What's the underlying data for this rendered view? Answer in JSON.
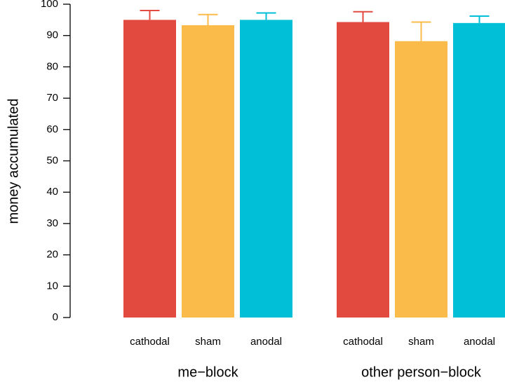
{
  "chart_data": {
    "type": "bar",
    "y_label": "money accumulated",
    "categories": [
      "me−block",
      "other person−block"
    ],
    "series": [
      {
        "name": "cathodal",
        "color": "#e34a3f",
        "values": [
          95,
          94.3
        ],
        "errors": [
          3,
          3.3
        ]
      },
      {
        "name": "sham",
        "color": "#fbbb4b",
        "values": [
          93.3,
          88.2
        ],
        "errors": [
          3.4,
          6.1
        ]
      },
      {
        "name": "anodal",
        "color": "#00bfd6",
        "values": [
          95,
          94
        ],
        "errors": [
          2.2,
          2.2
        ]
      }
    ],
    "ylim": [
      0,
      100
    ],
    "yticks": [
      0,
      10,
      20,
      30,
      40,
      50,
      60,
      70,
      80,
      90,
      100
    ]
  }
}
